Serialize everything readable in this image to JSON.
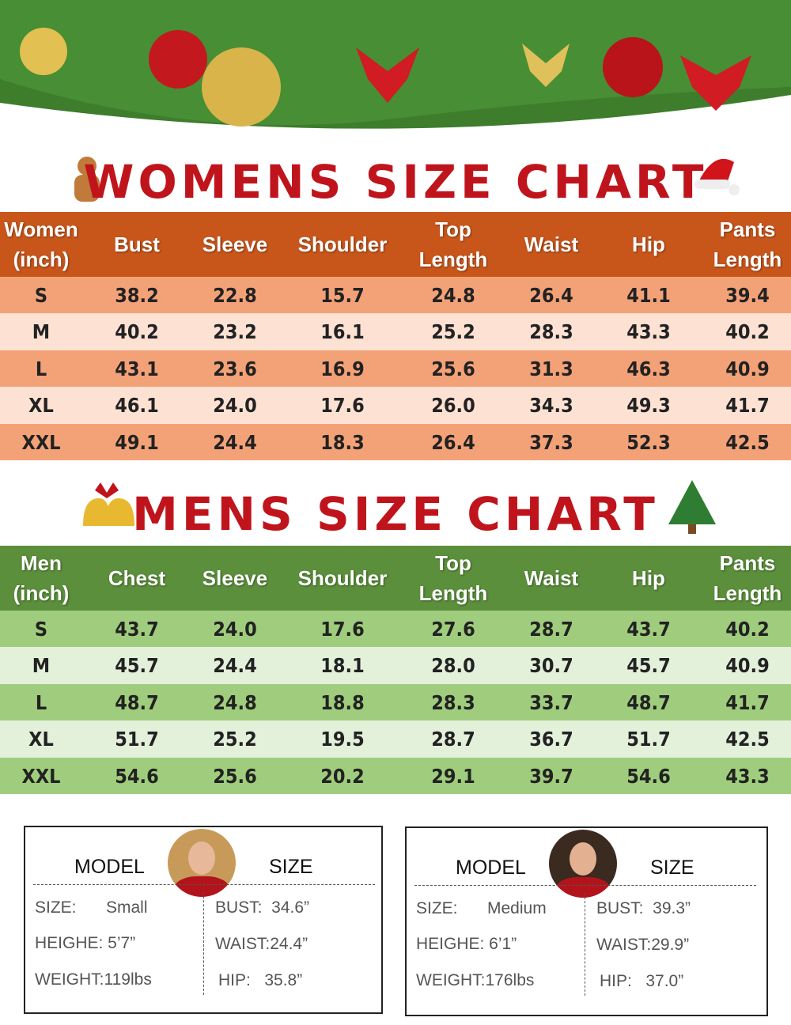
{
  "womens": {
    "title": "WOMENS SIZE CHART",
    "header": [
      [
        "Women",
        "(inch)"
      ],
      [
        "Bust"
      ],
      [
        "Sleeve"
      ],
      [
        "Shoulder"
      ],
      [
        "Top",
        "Length"
      ],
      [
        "Waist"
      ],
      [
        "Hip"
      ],
      [
        "Pants",
        "Length"
      ]
    ],
    "rows": [
      [
        "S",
        "38.2",
        "22.8",
        "15.7",
        "24.8",
        "26.4",
        "41.1",
        "39.4"
      ],
      [
        "M",
        "40.2",
        "23.2",
        "16.1",
        "25.2",
        "28.3",
        "43.3",
        "40.2"
      ],
      [
        "L",
        "43.1",
        "23.6",
        "16.9",
        "25.6",
        "31.3",
        "46.3",
        "40.9"
      ],
      [
        "XL",
        "46.1",
        "24.0",
        "17.6",
        "26.0",
        "34.3",
        "49.3",
        "41.7"
      ],
      [
        "XXL",
        "49.1",
        "24.4",
        "18.3",
        "26.4",
        "37.3",
        "52.3",
        "42.5"
      ]
    ]
  },
  "mens": {
    "title": "MENS SIZE CHART",
    "header": [
      [
        "Men",
        "(inch)"
      ],
      [
        "Chest"
      ],
      [
        "Sleeve"
      ],
      [
        "Shoulder"
      ],
      [
        "Top",
        "Length"
      ],
      [
        "Waist"
      ],
      [
        "Hip"
      ],
      [
        "Pants",
        "Length"
      ]
    ],
    "rows": [
      [
        "S",
        "43.7",
        "24.0",
        "17.6",
        "27.6",
        "28.7",
        "43.7",
        "40.2"
      ],
      [
        "M",
        "45.7",
        "24.4",
        "18.1",
        "28.0",
        "30.7",
        "45.7",
        "40.9"
      ],
      [
        "L",
        "48.7",
        "24.8",
        "18.8",
        "28.3",
        "33.7",
        "48.7",
        "41.7"
      ],
      [
        "XL",
        "51.7",
        "25.2",
        "19.5",
        "28.7",
        "36.7",
        "51.7",
        "42.5"
      ],
      [
        "XXL",
        "54.6",
        "25.6",
        "20.2",
        "29.1",
        "39.7",
        "54.6",
        "43.3"
      ]
    ]
  },
  "models": [
    {
      "heading_left": "MODEL",
      "heading_right": "SIZE",
      "size_label": "SIZE:",
      "size_value": "Small",
      "left_lines": [
        "HEIGHE: 5’7”",
        "WEIGHT:119lbs"
      ],
      "right_lines": [
        "BUST:  34.6”",
        "WAIST:24.4”",
        "HIP:   35.8”"
      ]
    },
    {
      "heading_left": "MODEL",
      "heading_right": "SIZE",
      "size_label": "SIZE:",
      "size_value": "Medium",
      "left_lines": [
        "HEIGHE: 6’1”",
        "WEIGHT:176lbs"
      ],
      "right_lines": [
        "BUST:  39.3”",
        "WAIST:29.9”",
        "HIP:   37.0”"
      ]
    }
  ]
}
